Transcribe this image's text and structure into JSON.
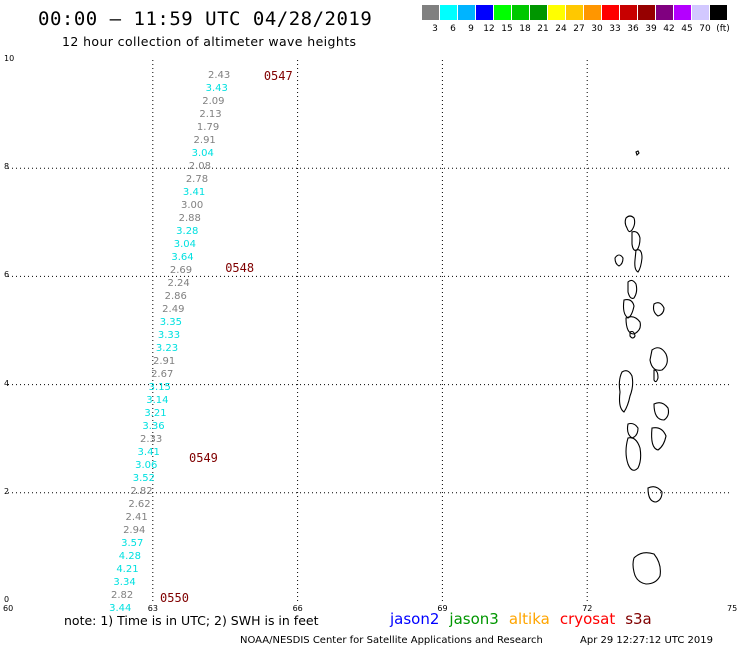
{
  "title": "00:00 – 11:59 UTC 04/28/2019",
  "subtitle": "12 hour collection of altimeter wave heights",
  "colorbar": {
    "labels": [
      "3",
      "6",
      "9",
      "12",
      "15",
      "18",
      "21",
      "24",
      "27",
      "30",
      "33",
      "36",
      "39",
      "42",
      "45",
      "70",
      "(ft)"
    ],
    "colors": [
      "#808080",
      "#00ffff",
      "#00b4ff",
      "#0000ff",
      "#00ff00",
      "#00c800",
      "#009600",
      "#ffff00",
      "#ffc800",
      "#ff9600",
      "#ff0000",
      "#c80000",
      "#960000",
      "#800080",
      "#b400ff",
      "#d2c8ff",
      "#000000"
    ]
  },
  "axes": {
    "xlim": [
      60,
      75
    ],
    "ylim": [
      0,
      10
    ],
    "x_ticks": [
      "60",
      "63",
      "66",
      "69",
      "72",
      "75"
    ],
    "y_ticks": [
      "0",
      "2",
      "4",
      "6",
      "8",
      "10"
    ]
  },
  "pass_labels": [
    {
      "text": "0547",
      "lon": 65.3,
      "lat": 9.7
    },
    {
      "text": "0548",
      "lon": 64.5,
      "lat": 6.15
    },
    {
      "text": "0549",
      "lon": 63.75,
      "lat": 2.65
    },
    {
      "text": "0550",
      "lon": 63.15,
      "lat": 0.05
    }
  ],
  "wave_heights": [
    {
      "v": "2.43",
      "c": "#808080",
      "lon": 64.6,
      "lat": 9.7
    },
    {
      "v": "3.43",
      "c": "#00e0e0",
      "lon": 64.55,
      "lat": 9.46
    },
    {
      "v": "2.09",
      "c": "#808080",
      "lon": 64.48,
      "lat": 9.22
    },
    {
      "v": "2.13",
      "c": "#808080",
      "lon": 64.42,
      "lat": 8.98
    },
    {
      "v": "1.79",
      "c": "#808080",
      "lon": 64.37,
      "lat": 8.74
    },
    {
      "v": "2.91",
      "c": "#808080",
      "lon": 64.3,
      "lat": 8.5
    },
    {
      "v": "3.04",
      "c": "#00e0e0",
      "lon": 64.26,
      "lat": 8.26
    },
    {
      "v": "2.08",
      "c": "#808080",
      "lon": 64.2,
      "lat": 8.02
    },
    {
      "v": "2.78",
      "c": "#808080",
      "lon": 64.14,
      "lat": 7.78
    },
    {
      "v": "3.41",
      "c": "#00e0e0",
      "lon": 64.08,
      "lat": 7.54
    },
    {
      "v": "3.00",
      "c": "#808080",
      "lon": 64.04,
      "lat": 7.3
    },
    {
      "v": "2.88",
      "c": "#808080",
      "lon": 63.99,
      "lat": 7.06
    },
    {
      "v": "3.28",
      "c": "#00e0e0",
      "lon": 63.94,
      "lat": 6.82
    },
    {
      "v": "3.04",
      "c": "#00e0e0",
      "lon": 63.89,
      "lat": 6.58
    },
    {
      "v": "3.64",
      "c": "#00e0e0",
      "lon": 63.84,
      "lat": 6.34
    },
    {
      "v": "2.69",
      "c": "#808080",
      "lon": 63.81,
      "lat": 6.1
    },
    {
      "v": "2.24",
      "c": "#808080",
      "lon": 63.76,
      "lat": 5.86
    },
    {
      "v": "2.86",
      "c": "#808080",
      "lon": 63.7,
      "lat": 5.62
    },
    {
      "v": "2.49",
      "c": "#808080",
      "lon": 63.65,
      "lat": 5.38
    },
    {
      "v": "3.35",
      "c": "#00e0e0",
      "lon": 63.6,
      "lat": 5.14
    },
    {
      "v": "3.33",
      "c": "#00e0e0",
      "lon": 63.56,
      "lat": 4.9
    },
    {
      "v": "3.23",
      "c": "#00e0e0",
      "lon": 63.52,
      "lat": 4.66
    },
    {
      "v": "2.91",
      "c": "#808080",
      "lon": 63.46,
      "lat": 4.42
    },
    {
      "v": "2.67",
      "c": "#808080",
      "lon": 63.42,
      "lat": 4.18
    },
    {
      "v": "3.15",
      "c": "#00e0e0",
      "lon": 63.37,
      "lat": 3.94
    },
    {
      "v": "3.14",
      "c": "#00e0e0",
      "lon": 63.32,
      "lat": 3.7
    },
    {
      "v": "3.21",
      "c": "#00e0e0",
      "lon": 63.28,
      "lat": 3.46
    },
    {
      "v": "3.36",
      "c": "#00e0e0",
      "lon": 63.24,
      "lat": 3.22
    },
    {
      "v": "2.33",
      "c": "#808080",
      "lon": 63.19,
      "lat": 2.98
    },
    {
      "v": "3.41",
      "c": "#00e0e0",
      "lon": 63.14,
      "lat": 2.74
    },
    {
      "v": "3.06",
      "c": "#00e0e0",
      "lon": 63.09,
      "lat": 2.5
    },
    {
      "v": "3.52",
      "c": "#00e0e0",
      "lon": 63.04,
      "lat": 2.26
    },
    {
      "v": "2.82",
      "c": "#808080",
      "lon": 62.99,
      "lat": 2.02
    },
    {
      "v": "2.62",
      "c": "#808080",
      "lon": 62.95,
      "lat": 1.78
    },
    {
      "v": "2.41",
      "c": "#808080",
      "lon": 62.89,
      "lat": 1.54
    },
    {
      "v": "2.94",
      "c": "#808080",
      "lon": 62.84,
      "lat": 1.3
    },
    {
      "v": "3.57",
      "c": "#00e0e0",
      "lon": 62.8,
      "lat": 1.06
    },
    {
      "v": "4.28",
      "c": "#00e0e0",
      "lon": 62.75,
      "lat": 0.82
    },
    {
      "v": "4.21",
      "c": "#00e0e0",
      "lon": 62.7,
      "lat": 0.58
    },
    {
      "v": "3.34",
      "c": "#00e0e0",
      "lon": 62.64,
      "lat": 0.34
    },
    {
      "v": "2.82",
      "c": "#808080",
      "lon": 62.59,
      "lat": 0.1
    },
    {
      "v": "3.44",
      "c": "#00e0e0",
      "lon": 62.55,
      "lat": -0.14
    }
  ],
  "note": "note:  1) Time is in UTC;  2) SWH is in feet",
  "satellites": [
    {
      "name": "jason2",
      "color": "#0000ff"
    },
    {
      "name": "jason3",
      "color": "#009600"
    },
    {
      "name": "altika",
      "color": "#ffa500"
    },
    {
      "name": "cryosat",
      "color": "#ff0000"
    },
    {
      "name": "s3a",
      "color": "#800000"
    }
  ],
  "footer_left": "NOAA/NESDIS Center for Satellite Applications and Research",
  "footer_right": "Apr 29 12:27:12 UTC 2019"
}
